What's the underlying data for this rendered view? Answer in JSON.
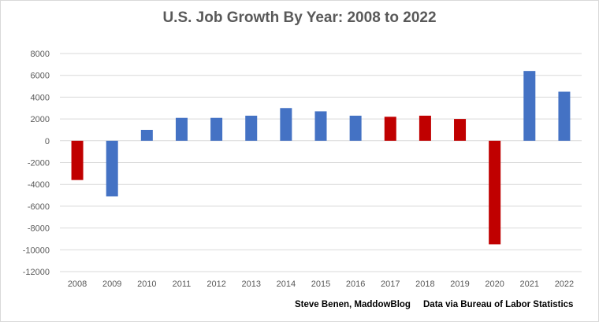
{
  "chart_data": {
    "type": "bar",
    "title": "U.S. Job Growth By Year: 2008 to 2022",
    "xlabel": "",
    "ylabel": "",
    "categories": [
      "2008",
      "2009",
      "2010",
      "2011",
      "2012",
      "2013",
      "2014",
      "2015",
      "2016",
      "2017",
      "2018",
      "2019",
      "2020",
      "2021",
      "2022"
    ],
    "values": [
      -3600,
      -5100,
      1000,
      2100,
      2100,
      2300,
      3000,
      2700,
      2300,
      2200,
      2300,
      2000,
      -9500,
      6400,
      4500
    ],
    "bar_colors": [
      "#c00000",
      "#4472c4",
      "#4472c4",
      "#4472c4",
      "#4472c4",
      "#4472c4",
      "#4472c4",
      "#4472c4",
      "#4472c4",
      "#c00000",
      "#c00000",
      "#c00000",
      "#c00000",
      "#4472c4",
      "#4472c4"
    ],
    "ylim": [
      -12000,
      8000
    ],
    "yticks": [
      8000,
      6000,
      4000,
      2000,
      0,
      -2000,
      -4000,
      -6000,
      -8000,
      -10000,
      -12000
    ],
    "grid": true,
    "legend": "none"
  },
  "credits": {
    "author": "Steve Benen, MaddowBlog",
    "source": "Data via Bureau of Labor Statistics"
  }
}
